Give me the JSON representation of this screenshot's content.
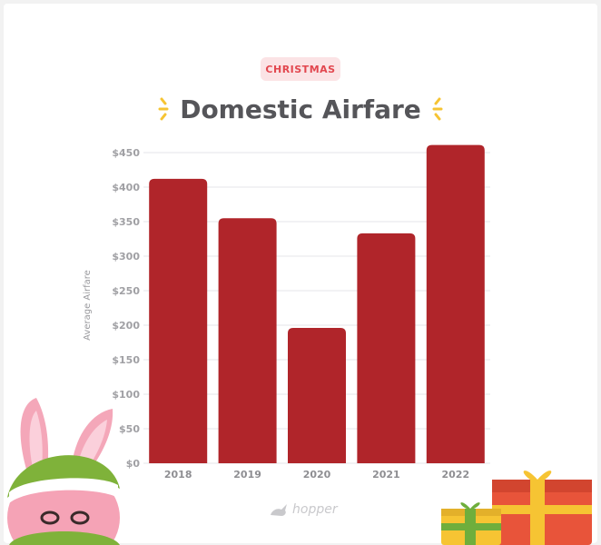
{
  "badge": "CHRISTMAS",
  "brand": "hopper",
  "chart_data": {
    "type": "bar",
    "title": "Domestic Airfare",
    "ylabel": "Average Airfare",
    "xlabel": "",
    "categories": [
      "2018",
      "2019",
      "2020",
      "2021",
      "2022"
    ],
    "values": [
      412,
      355,
      196,
      333,
      461
    ],
    "ylim": [
      0,
      450
    ],
    "yticks": [
      "$0",
      "$50",
      "$100",
      "$150",
      "$200",
      "$250",
      "$300",
      "$350",
      "$400",
      "$450"
    ],
    "grid": true,
    "bar_color": "#b0252a"
  },
  "colors": {
    "title": "#555559",
    "accent_yellow": "#f6c433",
    "badge_text": "#e2474f",
    "badge_bg": "#fbe3e5"
  },
  "decorations": {
    "left": "bunny-elf-illustration",
    "right": "gift-boxes-illustration",
    "title_sparkles": "sparkle-icon"
  }
}
